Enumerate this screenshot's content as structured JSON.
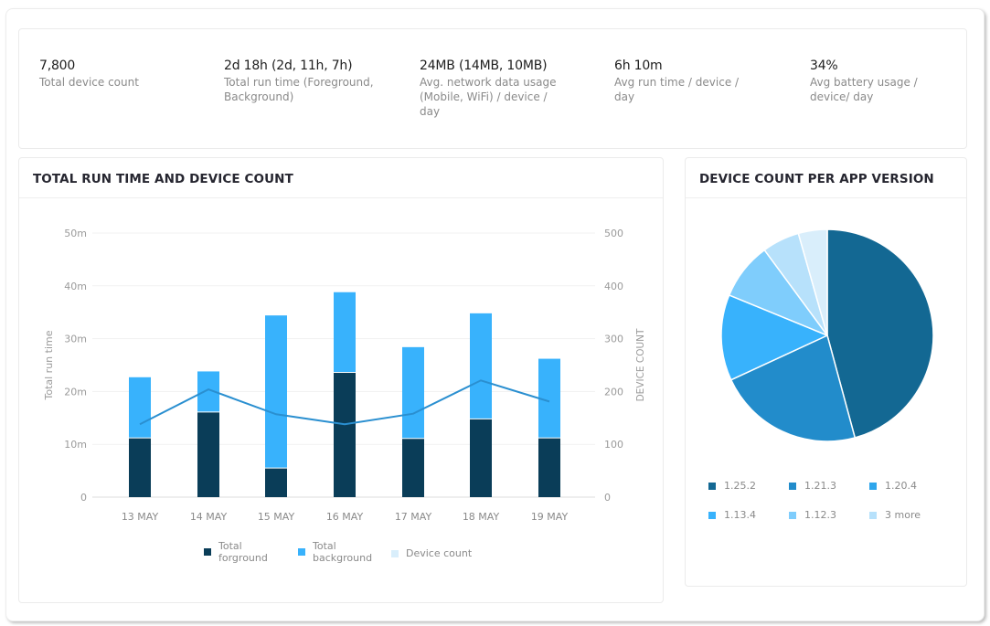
{
  "kpis": [
    {
      "value": "7,800",
      "label": "Total device count"
    },
    {
      "value": "2d 18h (2d, 11h, 7h)",
      "label": "Total run time (Foreground, Background)"
    },
    {
      "value": "24MB (14MB, 10MB)",
      "label": "Avg. network data usage (Mobile, WiFi) / device / day"
    },
    {
      "value": "6h 10m",
      "label": "Avg run time / device / day"
    },
    {
      "value": "34%",
      "label": "Avg battery usage / device/ day"
    }
  ],
  "run_time_card": {
    "title": "TOTAL RUN TIME AND DEVICE COUNT",
    "legend": [
      {
        "label": "Total forground",
        "color": "#0a3d58"
      },
      {
        "label": "Total background",
        "color": "#38b2fc"
      },
      {
        "label": "Device count",
        "color": "#d9eefb"
      }
    ]
  },
  "pie_card": {
    "title": "DEVICE COUNT PER APP VERSION",
    "legend": [
      {
        "label": "1.25.2",
        "color": "#136893"
      },
      {
        "label": "1.21.3",
        "color": "#228ccb"
      },
      {
        "label": "1.20.4",
        "color": "#2ea6ec"
      },
      {
        "label": "1.13.4",
        "color": "#38b2fc"
      },
      {
        "label": "1.12.3",
        "color": "#7fcdfc"
      },
      {
        "label": "3 more",
        "color": "#b7e1fb"
      }
    ]
  },
  "chart_data": [
    {
      "type": "bar",
      "title": "TOTAL RUN TIME AND DEVICE COUNT",
      "stacked": true,
      "categories": [
        "13 MAY",
        "14 MAY",
        "15 MAY",
        "16 MAY",
        "17 MAY",
        "18 MAY",
        "19 MAY"
      ],
      "series": [
        {
          "name": "Total forground",
          "type": "bar",
          "axis": "left",
          "color": "#0a3d58",
          "values": [
            11.3,
            16.2,
            5.6,
            23.7,
            11.2,
            14.9,
            11.3
          ]
        },
        {
          "name": "Total background",
          "type": "bar",
          "axis": "left",
          "color": "#38b2fc",
          "values": [
            11.4,
            7.6,
            28.8,
            15.1,
            17.2,
            19.9,
            14.9
          ]
        },
        {
          "name": "Device count",
          "type": "line",
          "axis": "right",
          "color": "#2a8fd0",
          "values": [
            138,
            204,
            157,
            138,
            158,
            221,
            181
          ]
        }
      ],
      "xlabel": "",
      "ylabel": "Total run time",
      "ylabel_right": "DEVICE COUNT",
      "ylim": [
        0,
        50
      ],
      "ylim_right": [
        0,
        500
      ],
      "yticks": [
        "0",
        "10m",
        "20m",
        "30m",
        "40m",
        "50m"
      ],
      "yticks_right": [
        "0",
        "100",
        "200",
        "300",
        "400",
        "500"
      ],
      "grid": true,
      "legend_position": "bottom"
    },
    {
      "type": "pie",
      "title": "DEVICE COUNT PER APP VERSION",
      "categories": [
        "1.25.2",
        "1.21.3",
        "1.20.4",
        "1.13.4",
        "1.12.3",
        "3 more"
      ],
      "values": [
        45.8,
        22.3,
        13.1,
        8.7,
        5.7,
        4.4
      ],
      "colors": [
        "#136893",
        "#228ccb",
        "#38b2fc",
        "#7fcdfc",
        "#b7e1fb",
        "#d9eefb"
      ],
      "legend_position": "bottom"
    }
  ]
}
